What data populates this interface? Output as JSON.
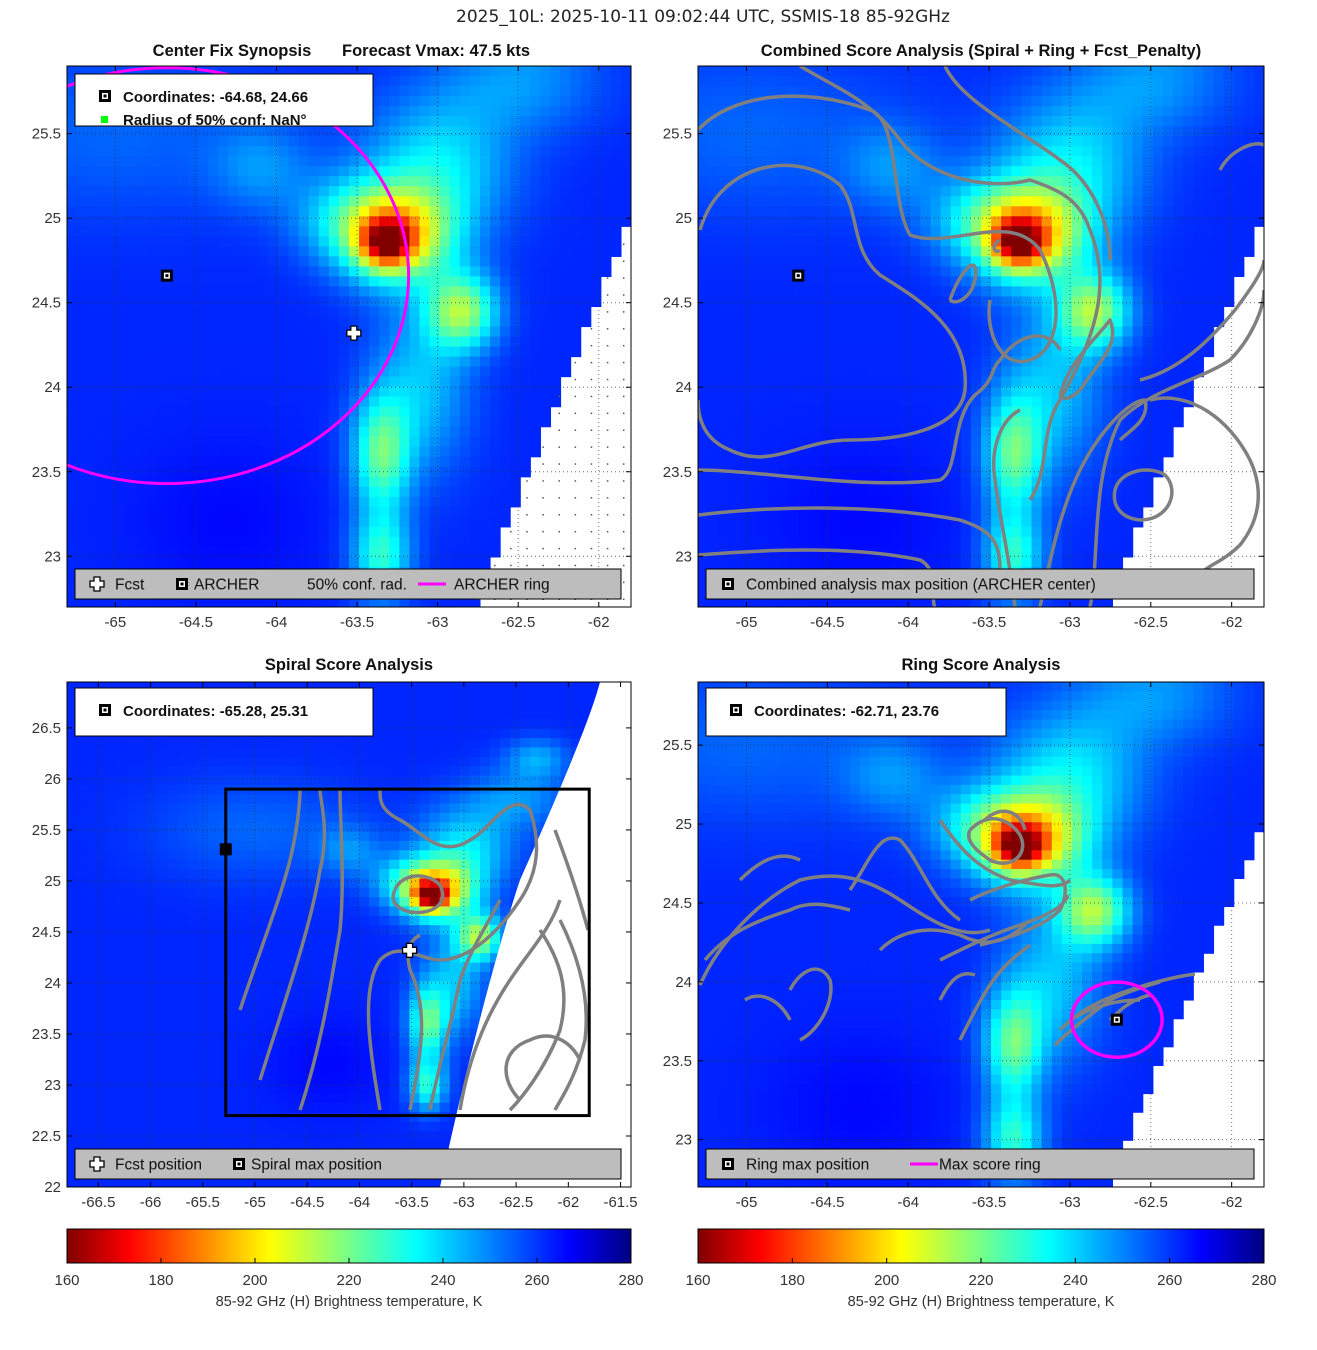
{
  "figure": {
    "suptitle": "2025_10L: 2025-10-11 09:02:44 UTC, SSMIS-18 85-92GHz"
  },
  "colors": {
    "marker_black": "#000000",
    "ring_magenta": "#ff00ff",
    "legend_gray": "#bdbdbd",
    "contour_gray": "#808080",
    "box_black": "#000000",
    "conf_green": "#00ff00"
  },
  "chart_data": [
    {
      "id": "synopsis",
      "type": "heatmap",
      "title": "Center Fix Synopsis",
      "title_right": "Forecast Vmax: 47.5 kts",
      "xlim": [
        -65.3,
        -61.8
      ],
      "ylim": [
        22.7,
        25.9
      ],
      "xticks": [
        -65,
        -64.5,
        -64,
        -63.5,
        -63,
        -62.5,
        -62
      ],
      "yticks": [
        23,
        23.5,
        24,
        24.5,
        25,
        25.5
      ],
      "grid": true,
      "info_lines": [
        "Coordinates: -64.68, 24.66",
        "Radius of 50% conf: NaN°"
      ],
      "legend": [
        "Fcst",
        "ARCHER",
        "50% conf. rad.",
        "ARCHER ring"
      ],
      "archer_center": [
        -64.68,
        24.66
      ],
      "fcst_position": [
        -63.52,
        24.32
      ],
      "ring": {
        "center": [
          -64.68,
          24.66
        ],
        "radius_deg": 1.5
      }
    },
    {
      "id": "combined",
      "type": "heatmap",
      "title": "Combined Score Analysis (Spiral + Ring + Fcst_Penalty)",
      "xlim": [
        -65.3,
        -61.8
      ],
      "ylim": [
        22.7,
        25.9
      ],
      "xticks": [
        -65,
        -64.5,
        -64,
        -63.5,
        -63,
        -62.5,
        -62
      ],
      "yticks": [
        23,
        23.5,
        24,
        24.5,
        25,
        25.5
      ],
      "grid": true,
      "legend": [
        "Combined analysis max position (ARCHER center)"
      ],
      "max_position": [
        -64.68,
        24.66
      ]
    },
    {
      "id": "spiral",
      "type": "heatmap",
      "title": "Spiral Score Analysis",
      "xlim": [
        -66.8,
        -61.4
      ],
      "ylim": [
        22.0,
        26.95
      ],
      "xticks": [
        -66.5,
        -66,
        -65.5,
        -65,
        -64.5,
        -64,
        -63.5,
        -63,
        -62.5,
        -62,
        -61.5
      ],
      "yticks": [
        22,
        22.5,
        23,
        23.5,
        24,
        24.5,
        25,
        25.5,
        26,
        26.5
      ],
      "grid": true,
      "info_lines": [
        "Coordinates: -65.28, 25.31"
      ],
      "legend": [
        "Fcst position",
        "Spiral max position"
      ],
      "spiral_max": [
        -65.28,
        25.31
      ],
      "fcst_position": [
        -63.52,
        24.32
      ],
      "box": {
        "x": [
          -65.28,
          -61.8
        ],
        "y": [
          22.7,
          25.9
        ]
      }
    },
    {
      "id": "ring",
      "type": "heatmap",
      "title": "Ring Score Analysis",
      "xlim": [
        -65.3,
        -61.8
      ],
      "ylim": [
        22.7,
        25.9
      ],
      "xticks": [
        -65,
        -64.5,
        -64,
        -63.5,
        -63,
        -62.5,
        -62
      ],
      "yticks": [
        23,
        23.5,
        24,
        24.5,
        25,
        25.5
      ],
      "grid": true,
      "info_lines": [
        "Coordinates: -62.71, 23.76"
      ],
      "legend": [
        "Ring max position",
        "Max score ring"
      ],
      "ring_max": [
        -62.71,
        23.76
      ],
      "ring": {
        "center": [
          -62.71,
          23.76
        ],
        "radius_deg": 0.28
      }
    }
  ],
  "colorbars": [
    {
      "label": "85-92 GHz (H) Brightness temperature, K",
      "ticks": [
        160,
        180,
        200,
        220,
        240,
        260,
        280
      ],
      "range": [
        160,
        280
      ]
    },
    {
      "label": "85-92 GHz (H) Brightness temperature, K",
      "ticks": [
        160,
        180,
        200,
        220,
        240,
        260,
        280
      ],
      "range": [
        160,
        280
      ]
    }
  ]
}
